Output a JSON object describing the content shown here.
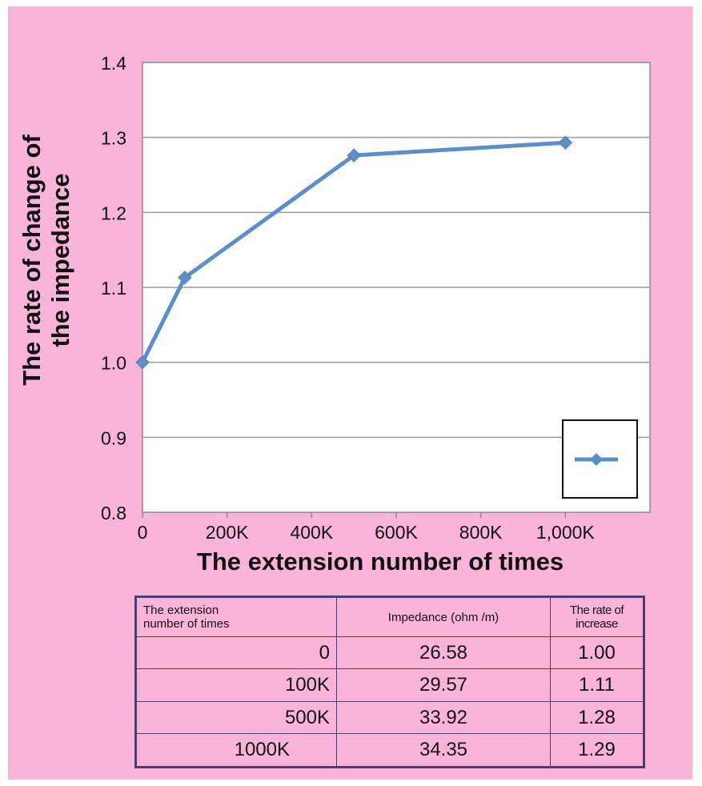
{
  "chart_data": {
    "type": "line",
    "title": "",
    "xlabel": "The extension number of times",
    "ylabel": [
      "The rate of change of",
      "the impedance"
    ],
    "x": [
      0,
      100000,
      500000,
      1000000
    ],
    "xlim": [
      0,
      1200000
    ],
    "ylim": [
      0.8,
      1.4
    ],
    "x_ticks": [
      {
        "value": 0,
        "label": "0"
      },
      {
        "value": 200000,
        "label": "200K"
      },
      {
        "value": 400000,
        "label": "400K"
      },
      {
        "value": 600000,
        "label": "600K"
      },
      {
        "value": 800000,
        "label": "800K"
      },
      {
        "value": 1000000,
        "label": "1,000K"
      }
    ],
    "y_ticks": [
      {
        "value": 0.8,
        "label": "0.8"
      },
      {
        "value": 0.9,
        "label": "0.9"
      },
      {
        "value": 1.0,
        "label": "1.0"
      },
      {
        "value": 1.1,
        "label": "1.1"
      },
      {
        "value": 1.2,
        "label": "1.2"
      },
      {
        "value": 1.3,
        "label": "1.3"
      },
      {
        "value": 1.4,
        "label": "1.4"
      }
    ],
    "series": [
      {
        "values": [
          1.0,
          1.113,
          1.276,
          1.293
        ],
        "color": "#5b8fc9",
        "marker": "diamond"
      }
    ],
    "grid": true,
    "legend": "bottom-right"
  },
  "table": {
    "headers": [
      "The extension\nnumber of times",
      "Impedance (ohm /m)",
      "The rate of increase"
    ],
    "rows": [
      [
        "0",
        "26.58",
        "1.00"
      ],
      [
        "100K",
        "29.57",
        "1.11"
      ],
      [
        "500K",
        "33.92",
        "1.28"
      ],
      [
        "1000K",
        "34.35",
        "1.29"
      ]
    ]
  },
  "colors": {
    "background": "#f9b4d7",
    "plot_area": "#ffffff",
    "series": "#5b8fc9",
    "table_border": "#4a3f6b"
  }
}
